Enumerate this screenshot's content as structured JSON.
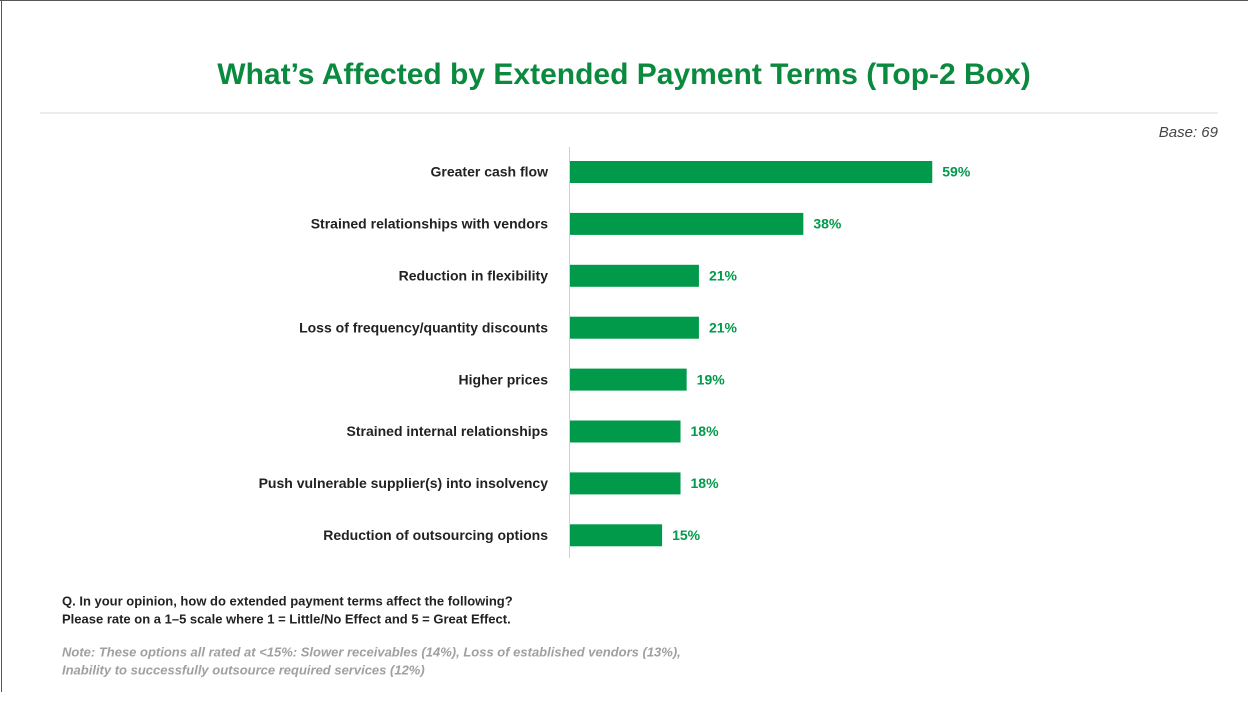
{
  "chart_data": {
    "type": "barh",
    "title": "What’s Affected by Extended Payment Terms (Top-2 Box)",
    "base": "Base: 69",
    "categories": [
      "Greater cash flow",
      "Strained relationships with vendors",
      "Reduction in flexibility",
      "Loss of frequency/quantity discounts",
      "Higher prices",
      "Strained internal relationships",
      "Push vulnerable supplier(s) into insolvency",
      "Reduction of outsourcing options"
    ],
    "values": [
      59,
      38,
      21,
      21,
      19,
      18,
      18,
      15
    ],
    "value_labels": [
      "59%",
      "38%",
      "21%",
      "21%",
      "19%",
      "18%",
      "18%",
      "15%"
    ],
    "color": "#009a4a",
    "question": [
      "Q. In your opinion, how do extended payment terms affect the following?",
      "Please rate on a 1–5 scale where 1 = Little/No Effect and 5 = Great Effect."
    ],
    "note": [
      "Note: These options all rated at <15%: Slower receivables (14%), Loss of established vendors (13%),",
      "Inability to successfully outsource required services (12%)"
    ]
  }
}
